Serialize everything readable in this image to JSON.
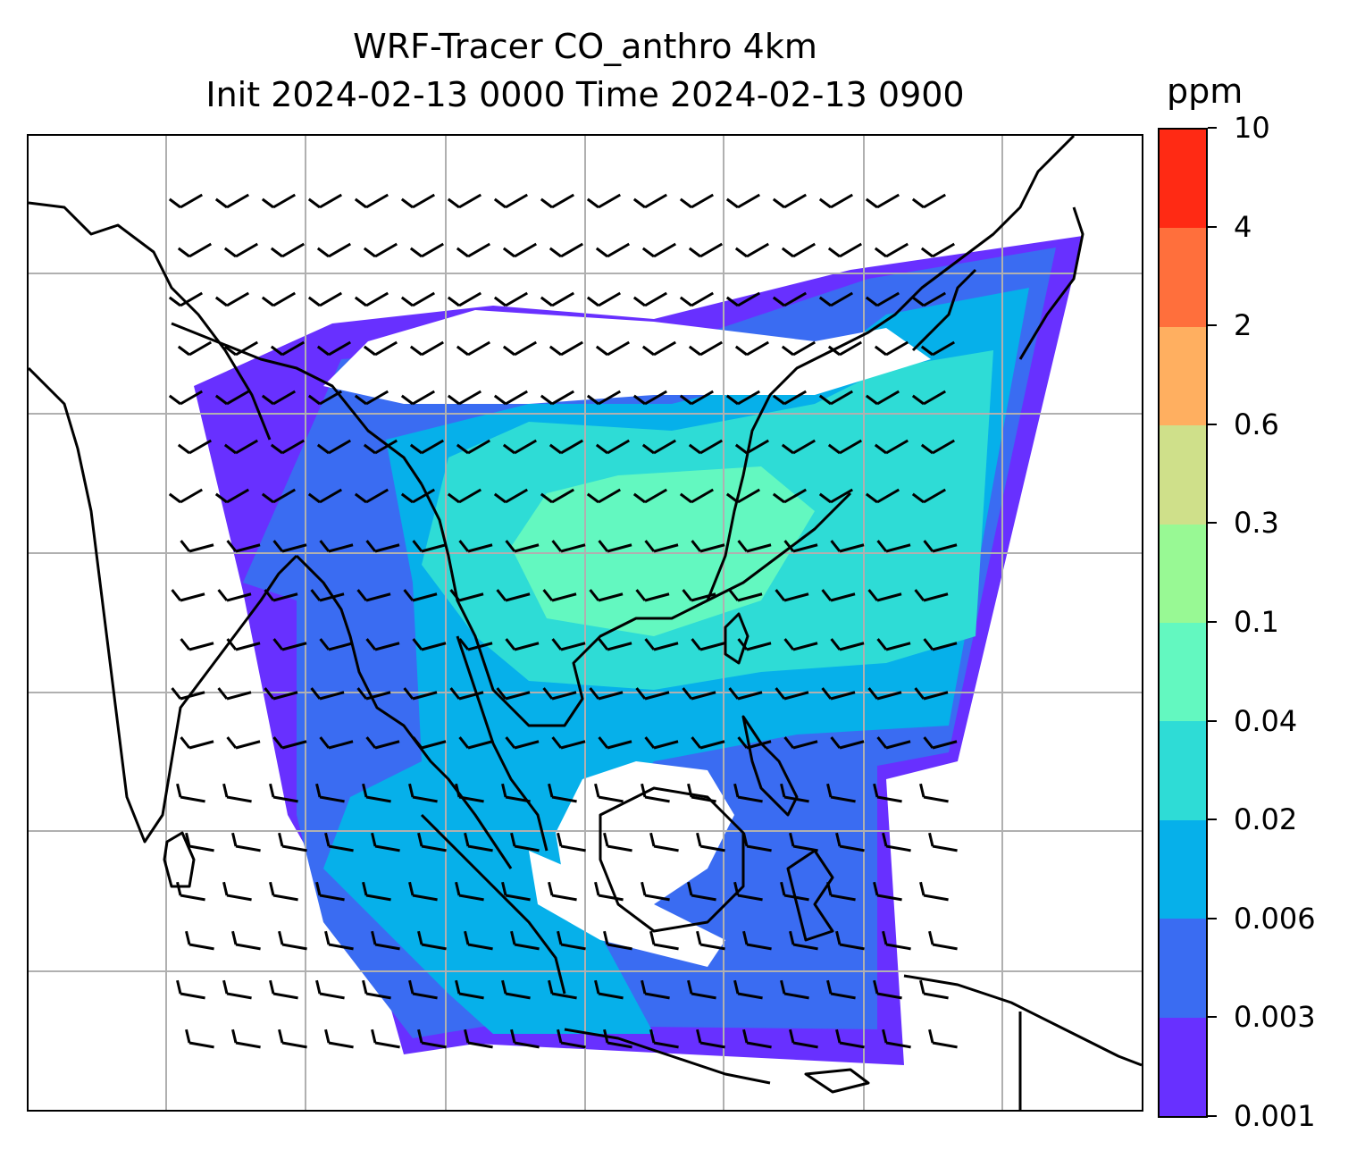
{
  "title": {
    "line1": "WRF-Tracer CO_anthro 4km",
    "line2": "Init 2024-02-13 0000 Time 2024-02-13 0900"
  },
  "colorbar": {
    "unit": "ppm",
    "ticks": [
      "10",
      "4",
      "2",
      "0.6",
      "0.3",
      "0.1",
      "0.04",
      "0.02",
      "0.006",
      "0.003",
      "0.001"
    ],
    "colors": [
      "#ff2a14",
      "#ff6f3c",
      "#ffaf60",
      "#cfe08a",
      "#98f994",
      "#63f8c0",
      "#2edcd6",
      "#06b0ea",
      "#3a6cf2",
      "#6830ff"
    ]
  },
  "colors": {
    "coastline": "#000000",
    "gridline": "#b0b0b0",
    "barbs": "#000000"
  }
}
